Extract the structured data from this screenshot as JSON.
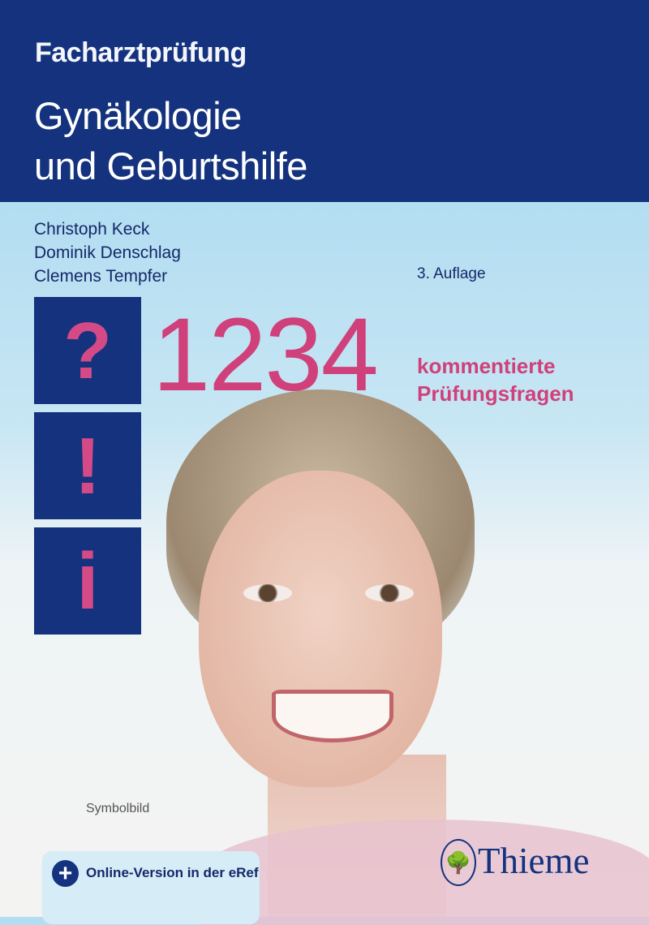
{
  "series": "Facharztprüfung",
  "title_lines": [
    "Gynäkologie",
    "und Geburtshilfe"
  ],
  "authors": [
    "Christoph Keck",
    "Dominik Denschlag",
    "Clemens Tempfer"
  ],
  "edition": "3. Auflage",
  "symbols": [
    "?",
    "!",
    "i"
  ],
  "count": "1234",
  "count_label_lines": [
    "kommentierte",
    "Prüfungsfragen"
  ],
  "image_caption": "Symbolbild",
  "online_badge": "Online-Version in der eRef",
  "publisher": "Thieme",
  "colors": {
    "brand_blue": "#14327e",
    "accent_pink": "#d0407a",
    "light_blue": "#b3ddf1"
  }
}
